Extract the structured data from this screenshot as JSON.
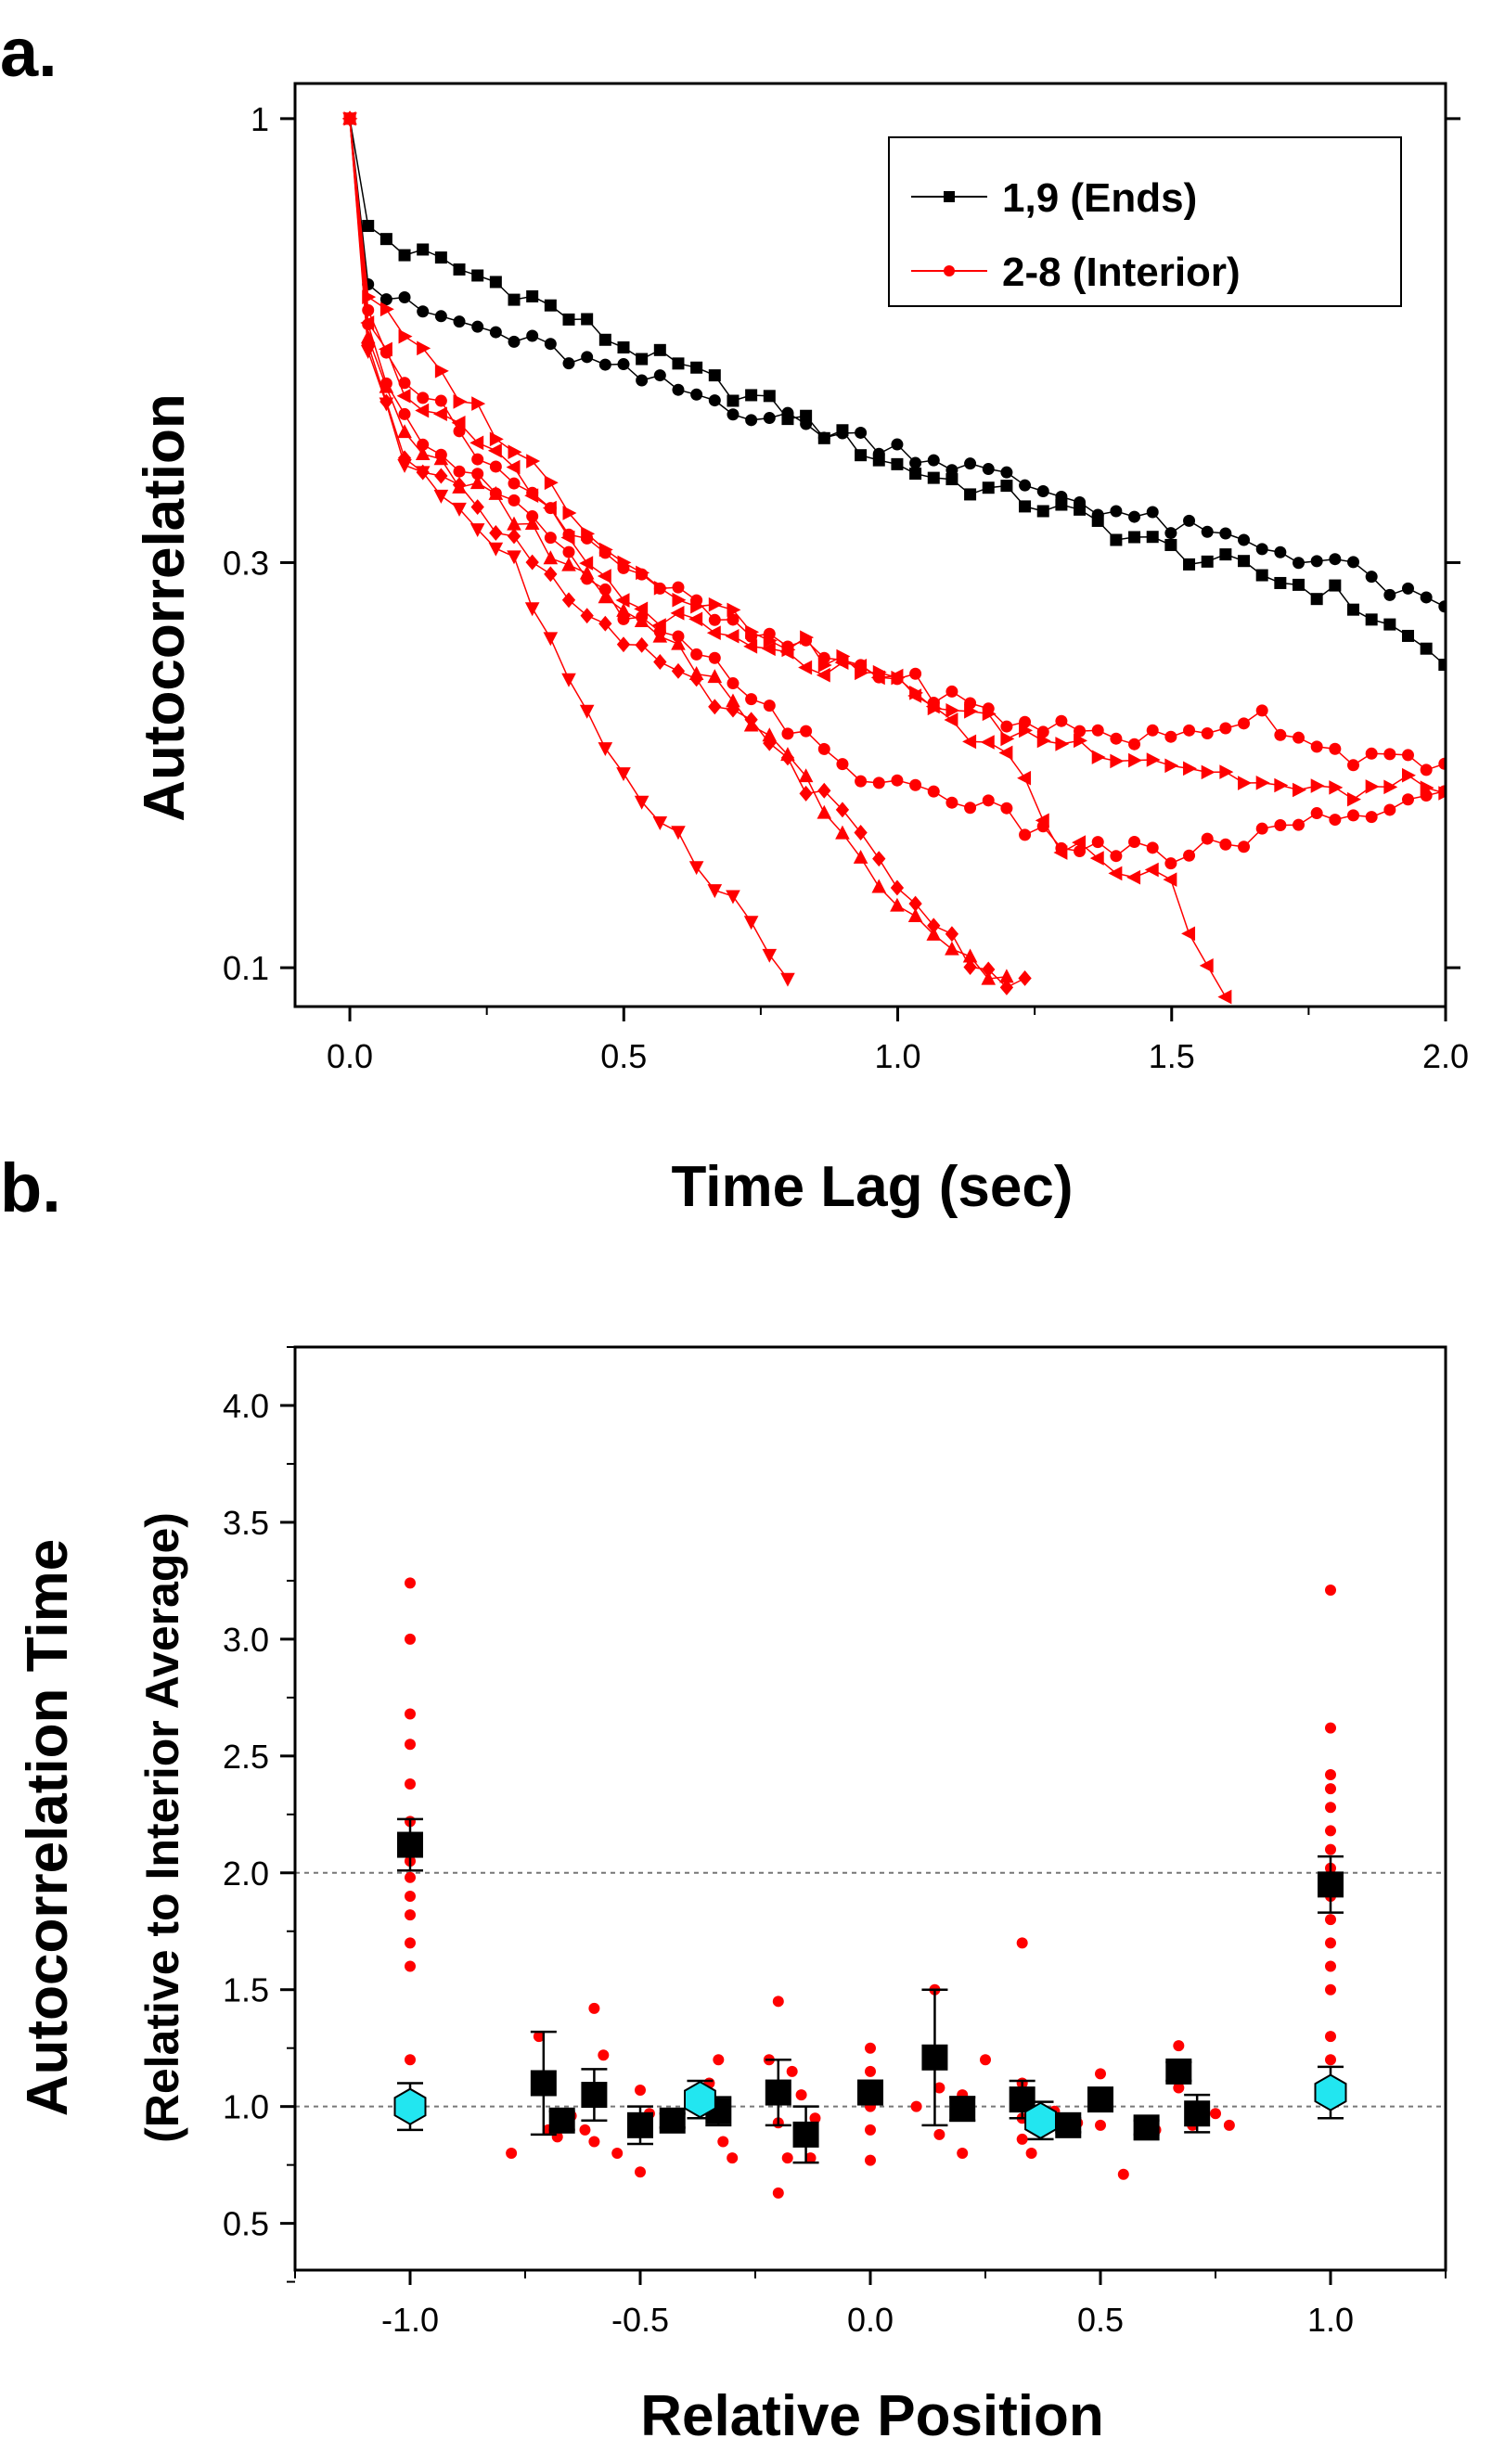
{
  "chart_data": [
    {
      "panel_label": "a.",
      "type": "line",
      "xlabel": "Time Lag (sec)",
      "ylabel": "Autocorrelation",
      "xlim": [
        -0.1,
        2.0
      ],
      "ylim": [
        0.09,
        1.1
      ],
      "yscale": "log",
      "x_ticks": [
        0.0,
        0.5,
        1.0,
        1.5,
        2.0
      ],
      "x_tick_labels": [
        "0.0",
        "0.5",
        "1.0",
        "1.5",
        "2.0"
      ],
      "y_ticks": [
        1,
        0.3,
        0.1
      ],
      "y_tick_labels": [
        "1",
        "0.3",
        "0.1"
      ],
      "legend_position": "top-right",
      "legend": [
        {
          "label": "1,9 (Ends)",
          "color": "#000000",
          "marker": "square"
        },
        {
          "label": "2-8 (Interior)",
          "color": "#ff0000",
          "marker": "circle"
        }
      ],
      "series": [
        {
          "name": "1,9 (Ends) trace A",
          "color": "#000000",
          "marker": "square",
          "anchors": [
            [
              0,
              1.0
            ],
            [
              0.03,
              0.75
            ],
            [
              0.1,
              0.7
            ],
            [
              0.3,
              0.63
            ],
            [
              0.5,
              0.54
            ],
            [
              0.8,
              0.45
            ],
            [
              1.0,
              0.39
            ],
            [
              1.3,
              0.345
            ],
            [
              1.5,
              0.31
            ],
            [
              1.8,
              0.275
            ],
            [
              2.0,
              0.23
            ]
          ]
        },
        {
          "name": "1,9 (Ends) trace B",
          "color": "#000000",
          "marker": "circle",
          "anchors": [
            [
              0,
              1.0
            ],
            [
              0.03,
              0.64
            ],
            [
              0.1,
              0.6
            ],
            [
              0.3,
              0.55
            ],
            [
              0.5,
              0.5
            ],
            [
              0.8,
              0.44
            ],
            [
              1.0,
              0.41
            ],
            [
              1.3,
              0.36
            ],
            [
              1.5,
              0.33
            ],
            [
              1.8,
              0.3
            ],
            [
              2.0,
              0.26
            ]
          ]
        },
        {
          "name": "2-8 (Interior) trace 1",
          "color": "#ff0000",
          "marker": "triangle-right",
          "anchors": [
            [
              0,
              1.0
            ],
            [
              0.03,
              0.62
            ],
            [
              0.1,
              0.55
            ],
            [
              0.3,
              0.41
            ],
            [
              0.5,
              0.3
            ],
            [
              0.75,
              0.25
            ],
            [
              1.0,
              0.215
            ],
            [
              1.2,
              0.19
            ],
            [
              1.5,
              0.175
            ],
            [
              1.75,
              0.16
            ],
            [
              2.0,
              0.165
            ]
          ]
        },
        {
          "name": "2-8 (Interior) trace 2",
          "color": "#ff0000",
          "marker": "circle",
          "anchors": [
            [
              0,
              1.0
            ],
            [
              0.03,
              0.6
            ],
            [
              0.1,
              0.5
            ],
            [
              0.3,
              0.37
            ],
            [
              0.5,
              0.3
            ],
            [
              0.7,
              0.25
            ],
            [
              1.0,
              0.22
            ],
            [
              1.2,
              0.195
            ],
            [
              1.5,
              0.185
            ],
            [
              1.65,
              0.2
            ],
            [
              1.8,
              0.18
            ],
            [
              2.0,
              0.17
            ]
          ]
        },
        {
          "name": "2-8 (Interior) trace 3",
          "color": "#ff0000",
          "marker": "triangle-left",
          "anchors": [
            [
              0,
              1.0
            ],
            [
              0.03,
              0.58
            ],
            [
              0.1,
              0.48
            ],
            [
              0.3,
              0.38
            ],
            [
              0.5,
              0.27
            ],
            [
              0.75,
              0.235
            ],
            [
              1.0,
              0.215
            ],
            [
              1.2,
              0.175
            ],
            [
              1.3,
              0.14
            ],
            [
              1.5,
              0.125
            ],
            [
              1.6,
              0.09
            ]
          ]
        },
        {
          "name": "2-8 (Interior) trace 4",
          "color": "#ff0000",
          "marker": "circle",
          "anchors": [
            [
              0,
              1.0
            ],
            [
              0.03,
              0.58
            ],
            [
              0.1,
              0.44
            ],
            [
              0.3,
              0.35
            ],
            [
              0.5,
              0.26
            ],
            [
              0.7,
              0.22
            ],
            [
              0.9,
              0.17
            ],
            [
              1.1,
              0.16
            ],
            [
              1.3,
              0.14
            ],
            [
              1.5,
              0.135
            ],
            [
              1.7,
              0.145
            ],
            [
              2.0,
              0.16
            ]
          ]
        },
        {
          "name": "2-8 (Interior) trace 5",
          "color": "#ff0000",
          "marker": "triangle-up",
          "anchors": [
            [
              0,
              1.0
            ],
            [
              0.03,
              0.56
            ],
            [
              0.1,
              0.42
            ],
            [
              0.3,
              0.34
            ],
            [
              0.5,
              0.26
            ],
            [
              0.7,
              0.21
            ],
            [
              0.85,
              0.16
            ],
            [
              1.0,
              0.12
            ],
            [
              1.1,
              0.105
            ],
            [
              1.2,
              0.095
            ]
          ]
        },
        {
          "name": "2-8 (Interior) trace 6",
          "color": "#ff0000",
          "marker": "diamond",
          "anchors": [
            [
              0,
              1.0
            ],
            [
              0.03,
              0.55
            ],
            [
              0.1,
              0.41
            ],
            [
              0.3,
              0.32
            ],
            [
              0.5,
              0.24
            ],
            [
              0.7,
              0.2
            ],
            [
              0.9,
              0.15
            ],
            [
              1.0,
              0.125
            ],
            [
              1.15,
              0.1
            ],
            [
              1.25,
              0.095
            ]
          ]
        },
        {
          "name": "2-8 (Interior) trace 7",
          "color": "#ff0000",
          "marker": "triangle-down",
          "anchors": [
            [
              0,
              1.0
            ],
            [
              0.03,
              0.54
            ],
            [
              0.1,
              0.4
            ],
            [
              0.3,
              0.3
            ],
            [
              0.42,
              0.2
            ],
            [
              0.55,
              0.155
            ],
            [
              0.7,
              0.12
            ],
            [
              0.82,
              0.092
            ]
          ]
        }
      ]
    },
    {
      "panel_label": "b.",
      "type": "scatter",
      "xlabel": "Relative Position",
      "ylabel": "Autocorrelation Time",
      "ylabel_sub": "(Relative to Interior Average)",
      "xlim": [
        -1.25,
        1.25
      ],
      "ylim": [
        0.3,
        4.25
      ],
      "x_ticks": [
        -1.0,
        -0.5,
        0.0,
        0.5,
        1.0
      ],
      "x_tick_labels": [
        "-1.0",
        "-0.5",
        "0.0",
        "0.5",
        "1.0"
      ],
      "y_ticks": [
        0.5,
        1.0,
        1.5,
        2.0,
        2.5,
        3.0,
        3.5,
        4.0
      ],
      "y_tick_labels": [
        "0.5",
        "1.0",
        "1.5",
        "2.0",
        "2.5",
        "3.0",
        "3.5",
        "4.0"
      ],
      "reference_lines": [
        1.0,
        2.0
      ],
      "red_points": [
        [
          -1.0,
          3.24
        ],
        [
          -1.0,
          3.0
        ],
        [
          -1.0,
          2.68
        ],
        [
          -1.0,
          2.55
        ],
        [
          -1.0,
          2.38
        ],
        [
          -1.0,
          2.22
        ],
        [
          -1.0,
          2.05
        ],
        [
          -1.0,
          1.98
        ],
        [
          -1.0,
          1.9
        ],
        [
          -1.0,
          1.82
        ],
        [
          -1.0,
          1.7
        ],
        [
          -1.0,
          1.6
        ],
        [
          -1.0,
          1.2
        ],
        [
          -0.78,
          0.8
        ],
        [
          -0.72,
          1.3
        ],
        [
          -0.7,
          0.9
        ],
        [
          -0.68,
          0.87
        ],
        [
          -0.65,
          0.96
        ],
        [
          -0.62,
          0.9
        ],
        [
          -0.6,
          1.42
        ],
        [
          -0.6,
          0.85
        ],
        [
          -0.58,
          1.22
        ],
        [
          -0.55,
          0.8
        ],
        [
          -0.5,
          1.07
        ],
        [
          -0.5,
          0.72
        ],
        [
          -0.48,
          0.97
        ],
        [
          -0.42,
          0.92
        ],
        [
          -0.38,
          1.0
        ],
        [
          -0.35,
          1.1
        ],
        [
          -0.33,
          1.2
        ],
        [
          -0.32,
          0.85
        ],
        [
          -0.3,
          0.78
        ],
        [
          -0.22,
          1.2
        ],
        [
          -0.2,
          1.45
        ],
        [
          -0.2,
          0.93
        ],
        [
          -0.2,
          0.63
        ],
        [
          -0.18,
          0.78
        ],
        [
          -0.17,
          1.15
        ],
        [
          -0.15,
          1.05
        ],
        [
          -0.13,
          0.78
        ],
        [
          -0.12,
          0.95
        ],
        [
          0.0,
          1.25
        ],
        [
          0.0,
          1.15
        ],
        [
          0.0,
          1.0
        ],
        [
          0.0,
          0.9
        ],
        [
          0.0,
          0.77
        ],
        [
          0.1,
          1.0
        ],
        [
          0.14,
          1.5
        ],
        [
          0.15,
          1.08
        ],
        [
          0.15,
          0.88
        ],
        [
          0.2,
          1.05
        ],
        [
          0.2,
          0.8
        ],
        [
          0.25,
          1.2
        ],
        [
          0.33,
          1.7
        ],
        [
          0.33,
          1.1
        ],
        [
          0.33,
          0.95
        ],
        [
          0.33,
          0.86
        ],
        [
          0.35,
          0.8
        ],
        [
          0.4,
          0.98
        ],
        [
          0.45,
          0.93
        ],
        [
          0.5,
          1.14
        ],
        [
          0.5,
          1.05
        ],
        [
          0.5,
          0.92
        ],
        [
          0.55,
          0.71
        ],
        [
          0.6,
          0.93
        ],
        [
          0.62,
          0.9
        ],
        [
          0.67,
          1.26
        ],
        [
          0.67,
          1.18
        ],
        [
          0.67,
          1.08
        ],
        [
          0.7,
          0.92
        ],
        [
          0.72,
          1.0
        ],
        [
          0.75,
          0.97
        ],
        [
          0.78,
          0.92
        ],
        [
          1.0,
          3.21
        ],
        [
          1.0,
          2.62
        ],
        [
          1.0,
          2.42
        ],
        [
          1.0,
          2.36
        ],
        [
          1.0,
          2.28
        ],
        [
          1.0,
          2.18
        ],
        [
          1.0,
          2.1
        ],
        [
          1.0,
          2.02
        ],
        [
          1.0,
          1.9
        ],
        [
          1.0,
          1.8
        ],
        [
          1.0,
          1.7
        ],
        [
          1.0,
          1.6
        ],
        [
          1.0,
          1.5
        ],
        [
          1.0,
          1.3
        ],
        [
          1.0,
          1.2
        ]
      ],
      "mean_points": [
        {
          "x": -1.0,
          "y": 2.12,
          "err": 0.11
        },
        {
          "x": -0.71,
          "y": 1.1,
          "err": 0.22
        },
        {
          "x": -0.67,
          "y": 0.94,
          "err": 0.04
        },
        {
          "x": -0.6,
          "y": 1.05,
          "err": 0.11
        },
        {
          "x": -0.5,
          "y": 0.92,
          "err": 0.08
        },
        {
          "x": -0.43,
          "y": 0.94,
          "err": 0.03
        },
        {
          "x": -0.33,
          "y": 0.98,
          "err": 0.06
        },
        {
          "x": -0.2,
          "y": 1.06,
          "err": 0.14
        },
        {
          "x": -0.14,
          "y": 0.88,
          "err": 0.12
        },
        {
          "x": 0.0,
          "y": 1.06,
          "err": 0.05
        },
        {
          "x": 0.14,
          "y": 1.21,
          "err": 0.29
        },
        {
          "x": 0.2,
          "y": 0.99,
          "err": 0.05
        },
        {
          "x": 0.33,
          "y": 1.03,
          "err": 0.08
        },
        {
          "x": 0.43,
          "y": 0.92,
          "err": 0.03
        },
        {
          "x": 0.5,
          "y": 1.03,
          "err": 0.04
        },
        {
          "x": 0.6,
          "y": 0.91,
          "err": 0.03
        },
        {
          "x": 0.67,
          "y": 1.15,
          "err": 0.04
        },
        {
          "x": 0.71,
          "y": 0.97,
          "err": 0.08
        },
        {
          "x": 1.0,
          "y": 1.95,
          "err": 0.12
        }
      ],
      "group_points": [
        {
          "x": -1.0,
          "y": 1.0,
          "err": 0.1
        },
        {
          "x": -0.37,
          "y": 1.03,
          "err": 0.08
        },
        {
          "x": 0.37,
          "y": 0.94,
          "err": 0.08
        },
        {
          "x": 1.0,
          "y": 1.06,
          "err": 0.11
        }
      ]
    }
  ]
}
